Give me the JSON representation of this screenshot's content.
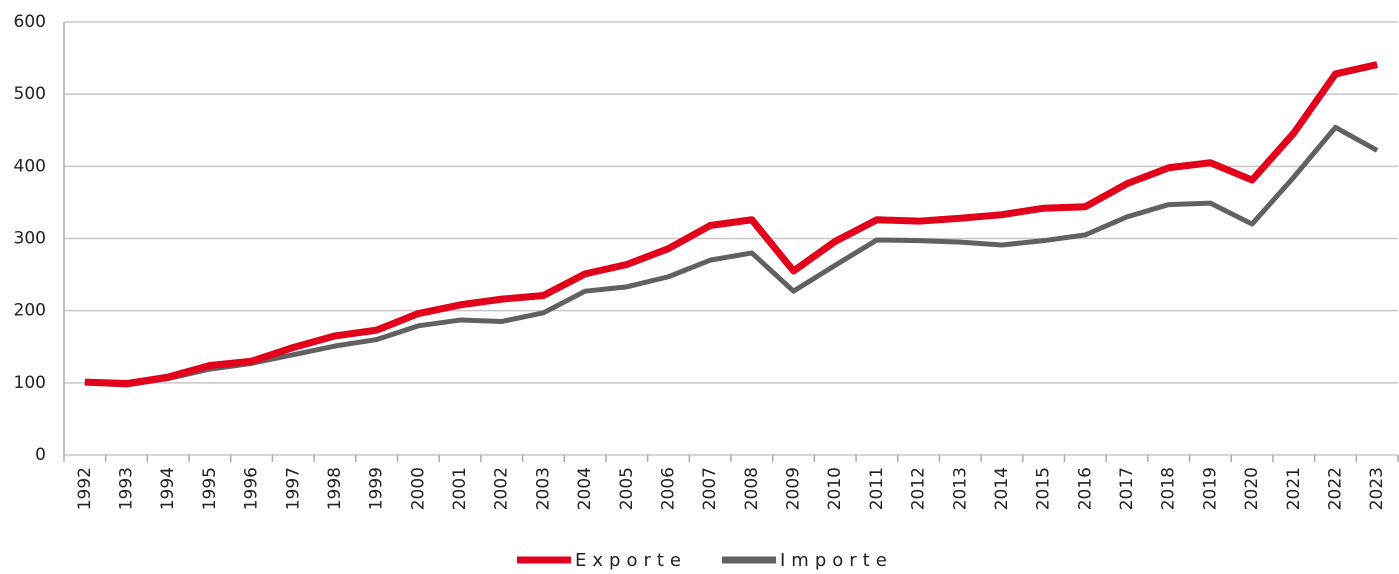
{
  "chart_data": {
    "type": "line",
    "categories": [
      "1992",
      "1993",
      "1994",
      "1995",
      "1996",
      "1997",
      "1998",
      "1999",
      "2000",
      "2001",
      "2002",
      "2003",
      "2004",
      "2005",
      "2006",
      "2007",
      "2008",
      "2009",
      "2010",
      "2011",
      "2012",
      "2013",
      "2014",
      "2015",
      "2016",
      "2017",
      "2018",
      "2019",
      "2020",
      "2021",
      "2022",
      "2023"
    ],
    "series": [
      {
        "name": "Exporte",
        "color": "#e2001a",
        "values": [
          101,
          99,
          108,
          124,
          130,
          149,
          165,
          173,
          196,
          208,
          216,
          221,
          251,
          264,
          286,
          318,
          326,
          255,
          296,
          326,
          324,
          328,
          333,
          342,
          344,
          376,
          398,
          405,
          381,
          446,
          528,
          541
        ]
      },
      {
        "name": "Importe",
        "color": "#616161",
        "values": [
          100,
          97,
          106,
          119,
          127,
          139,
          151,
          160,
          179,
          187,
          185,
          197,
          227,
          233,
          247,
          270,
          280,
          227,
          263,
          298,
          297,
          295,
          291,
          297,
          305,
          330,
          347,
          349,
          320,
          385,
          454,
          422
        ]
      }
    ],
    "ylim": [
      0,
      600
    ],
    "yticks": [
      0,
      100,
      200,
      300,
      400,
      500,
      600
    ],
    "grid": true,
    "legend": "bottom"
  }
}
